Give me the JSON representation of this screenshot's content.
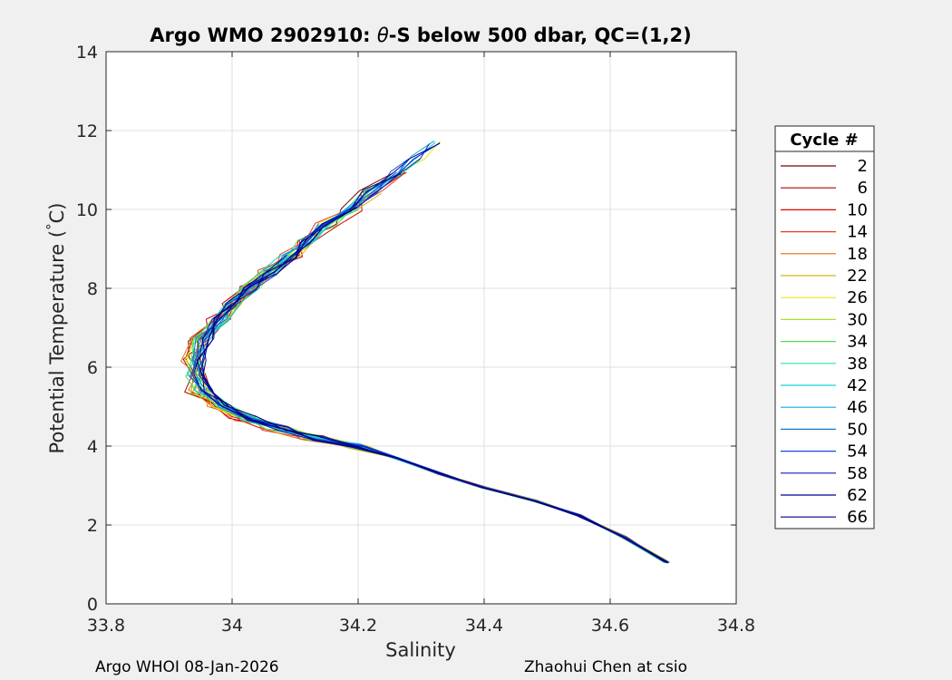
{
  "chart_data": {
    "type": "line",
    "title": "Argo WMO 2902910: θ-S below 500 dbar,  QC=(1,2)",
    "title_parts": {
      "pre": "Argo WMO 2902910: ",
      "theta": "θ",
      "post": "-S below 500 dbar,  QC=(1,2)"
    },
    "xlabel": "Salinity",
    "ylabel": "Potential Temperature (",
    "ylabel_unit": "C)",
    "ylabel_degree": "°",
    "xlim": [
      33.8,
      34.8
    ],
    "ylim": [
      0,
      14
    ],
    "xticks": [
      33.8,
      34.0,
      34.2,
      34.4,
      34.6,
      34.8
    ],
    "xtick_labels": [
      "33.8",
      "34",
      "34.2",
      "34.4",
      "34.6",
      "34.8"
    ],
    "yticks": [
      0,
      2,
      4,
      6,
      8,
      10,
      12,
      14
    ],
    "ytick_labels": [
      "0",
      "2",
      "4",
      "6",
      "8",
      "10",
      "12",
      "14"
    ],
    "grid": true,
    "legend_title": "Cycle #",
    "legend_position": "outside-right",
    "legend": [
      {
        "label": "2",
        "color": "#7f0000"
      },
      {
        "label": "6",
        "color": "#b50000"
      },
      {
        "label": "10",
        "color": "#dc0000"
      },
      {
        "label": "14",
        "color": "#e83a1b"
      },
      {
        "label": "18",
        "color": "#e06d14"
      },
      {
        "label": "22",
        "color": "#d4b414"
      },
      {
        "label": "26",
        "color": "#e8e814"
      },
      {
        "label": "30",
        "color": "#a0e828"
      },
      {
        "label": "34",
        "color": "#50e050"
      },
      {
        "label": "38",
        "color": "#28e8a0"
      },
      {
        "label": "42",
        "color": "#14d2d2"
      },
      {
        "label": "46",
        "color": "#14a8e0"
      },
      {
        "label": "50",
        "color": "#1478d2"
      },
      {
        "label": "54",
        "color": "#1446dc"
      },
      {
        "label": "58",
        "color": "#0a1ebe"
      },
      {
        "label": "62",
        "color": "#000096"
      },
      {
        "label": "66",
        "color": "#000080"
      }
    ],
    "mean_profile": {
      "salinity": [
        34.69,
        34.62,
        34.55,
        34.48,
        34.4,
        34.33,
        34.26,
        34.2,
        34.14,
        34.08,
        34.03,
        33.99,
        33.96,
        33.95,
        33.95,
        33.96,
        33.98,
        34.0,
        34.03,
        34.06,
        34.09,
        34.12,
        34.15,
        34.19,
        34.22,
        34.26,
        34.29,
        34.32
      ],
      "theta": [
        1.05,
        1.7,
        2.25,
        2.62,
        2.95,
        3.3,
        3.7,
        4.0,
        4.2,
        4.45,
        4.7,
        5.0,
        5.4,
        5.8,
        6.2,
        6.7,
        7.2,
        7.6,
        8.0,
        8.4,
        8.8,
        9.2,
        9.6,
        10.0,
        10.45,
        10.9,
        11.3,
        11.7
      ]
    }
  },
  "footer": {
    "left": "Argo WHOI 08-Jan-2026",
    "right": "Zhaohui Chen at csio"
  }
}
